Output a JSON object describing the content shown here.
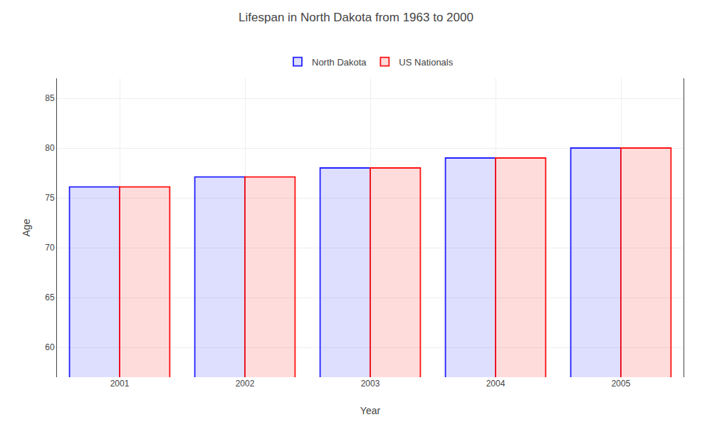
{
  "chart_data": {
    "type": "bar",
    "title": "Lifespan in North Dakota from 1963 to 2000",
    "x_label": "Year",
    "y_label": "Age",
    "categories": [
      "2001",
      "2002",
      "2003",
      "2004",
      "2005"
    ],
    "series": [
      {
        "name": "North Dakota",
        "color": "#2222ff",
        "values": [
          76.1,
          77.1,
          78.0,
          79.0,
          80.0
        ]
      },
      {
        "name": "US Nationals",
        "color": "#ff1111",
        "values": [
          76.1,
          77.1,
          78.0,
          79.0,
          80.0
        ]
      }
    ],
    "ylim": [
      57,
      87
    ],
    "yticks": [
      60,
      65,
      70,
      75,
      80,
      85
    ],
    "grid": true,
    "legend": "top"
  }
}
